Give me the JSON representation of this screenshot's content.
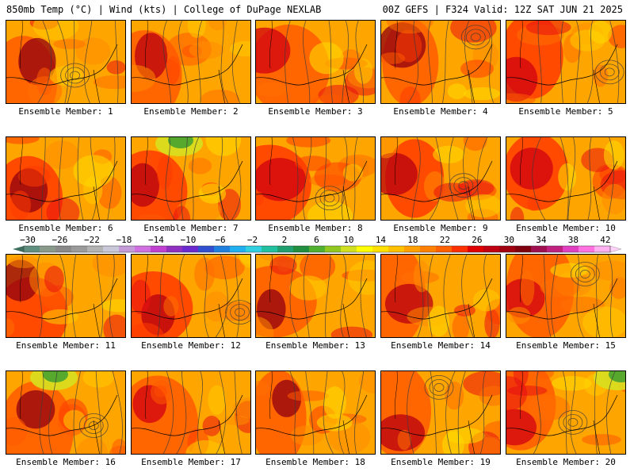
{
  "header": {
    "left": "850mb Temp (°C) | Wind (kts) | College of DuPage NEXLAB",
    "right": "00Z GEFS | F324 Valid: 12Z SAT JUN 21 2025"
  },
  "panels": [
    {
      "label": "Ensemble Member: 1"
    },
    {
      "label": "Ensemble Member: 2"
    },
    {
      "label": "Ensemble Member: 3"
    },
    {
      "label": "Ensemble Member: 4"
    },
    {
      "label": "Ensemble Member: 5"
    },
    {
      "label": "Ensemble Member: 6"
    },
    {
      "label": "Ensemble Member: 7"
    },
    {
      "label": "Ensemble Member: 8"
    },
    {
      "label": "Ensemble Member: 9"
    },
    {
      "label": "Ensemble Member: 10"
    },
    {
      "label": "Ensemble Member: 11"
    },
    {
      "label": "Ensemble Member: 12"
    },
    {
      "label": "Ensemble Member: 13"
    },
    {
      "label": "Ensemble Member: 14"
    },
    {
      "label": "Ensemble Member: 15"
    },
    {
      "label": "Ensemble Member: 16"
    },
    {
      "label": "Ensemble Member: 17"
    },
    {
      "label": "Ensemble Member: 18"
    },
    {
      "label": "Ensemble Member: 19"
    },
    {
      "label": "Ensemble Member: 20"
    }
  ],
  "colorbar": {
    "tick_labels": [
      "−30",
      "−26",
      "−22",
      "−18",
      "−14",
      "−10",
      "−6",
      "−2",
      "2",
      "6",
      "10",
      "14",
      "18",
      "22",
      "26",
      "30",
      "34",
      "38",
      "42"
    ],
    "colors": [
      "#5f8f7f",
      "#8a9a8a",
      "#8a8a8a",
      "#9b9b9b",
      "#b3b3b3",
      "#c8c8d8",
      "#c59ad8",
      "#d070e0",
      "#c040d0",
      "#9030c0",
      "#6a2ad0",
      "#3050d0",
      "#2080e0",
      "#20b0f0",
      "#30d0e0",
      "#20c0a0",
      "#20a070",
      "#209040",
      "#50b030",
      "#90c820",
      "#d0e020",
      "#ffff00",
      "#ffe000",
      "#ffc000",
      "#ffa000",
      "#ff8000",
      "#ff6000",
      "#ff3000",
      "#e00000",
      "#c00010",
      "#a00010",
      "#800010",
      "#a01050",
      "#c02080",
      "#e040c0",
      "#ff70e0",
      "#ffb0f0"
    ]
  }
}
